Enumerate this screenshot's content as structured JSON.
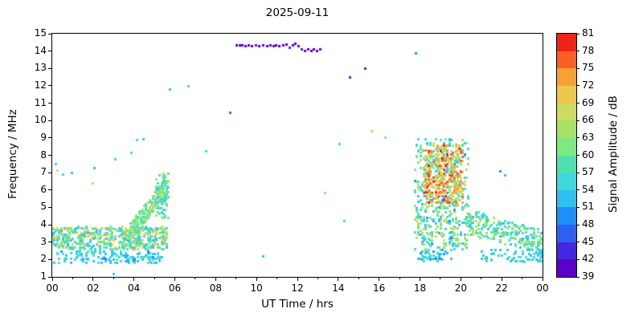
{
  "title": "2025-09-11",
  "colors": {
    "background": "#ffffff",
    "axis": "#000000"
  },
  "chart_data": {
    "type": "scatter",
    "title": "2025-09-11",
    "xlabel": "UT Time / hrs",
    "ylabel": "Frequency / MHz",
    "colorbar_label": "Signal Amplitude / dB",
    "xlim": [
      0,
      24
    ],
    "ylim": [
      1,
      15
    ],
    "clim": [
      39,
      81
    ],
    "grid": false,
    "legend": "none",
    "marker_size": 3,
    "seed": 1234,
    "xticks": {
      "values": [
        0,
        2,
        4,
        6,
        8,
        10,
        12,
        14,
        16,
        18,
        20,
        22,
        24
      ],
      "labels": [
        "00",
        "02",
        "04",
        "06",
        "08",
        "10",
        "12",
        "14",
        "16",
        "18",
        "20",
        "22",
        "00"
      ]
    },
    "xminor": [
      1,
      3,
      5,
      7,
      9,
      11,
      13,
      15,
      17,
      19,
      21,
      23
    ],
    "yticks": [
      1,
      2,
      3,
      4,
      5,
      6,
      7,
      8,
      9,
      10,
      11,
      12,
      13,
      14,
      15
    ],
    "colorbar_ticks": [
      39,
      42,
      45,
      48,
      51,
      54,
      57,
      60,
      63,
      66,
      69,
      72,
      75,
      78,
      81
    ],
    "colormap": [
      "#5a00c8",
      "#4428e0",
      "#3060f0",
      "#2090f8",
      "#30c0f0",
      "#40d8d8",
      "#50e0b0",
      "#80e880",
      "#a8e068",
      "#ccdc60",
      "#ecc84c",
      "#f8a038",
      "#f86028",
      "#ee2418"
    ],
    "points": [
      [
        0.15,
        7.5,
        54
      ],
      [
        0.22,
        7.15,
        68
      ],
      [
        0.5,
        6.9,
        54
      ],
      [
        0.95,
        7.0,
        51
      ],
      [
        1.95,
        6.4,
        69
      ],
      [
        2.05,
        7.3,
        51
      ],
      [
        3.05,
        7.8,
        54
      ],
      [
        3.0,
        1.2,
        51
      ],
      [
        3.85,
        8.15,
        54
      ],
      [
        4.15,
        8.9,
        54
      ],
      [
        4.45,
        8.95,
        51
      ],
      [
        5.75,
        11.8,
        51
      ],
      [
        6.65,
        12.0,
        54
      ],
      [
        7.5,
        8.25,
        54
      ],
      [
        8.7,
        10.45,
        46
      ],
      [
        10.3,
        2.2,
        51
      ],
      [
        9.0,
        14.35,
        40
      ],
      [
        9.15,
        14.35,
        39
      ],
      [
        9.3,
        14.35,
        41
      ],
      [
        9.45,
        14.3,
        39
      ],
      [
        9.6,
        14.35,
        40
      ],
      [
        9.75,
        14.3,
        39
      ],
      [
        9.95,
        14.35,
        42
      ],
      [
        10.1,
        14.3,
        39
      ],
      [
        10.3,
        14.35,
        40
      ],
      [
        10.5,
        14.3,
        39
      ],
      [
        10.65,
        14.35,
        41
      ],
      [
        10.8,
        14.3,
        39
      ],
      [
        10.95,
        14.35,
        39
      ],
      [
        11.1,
        14.3,
        40
      ],
      [
        11.3,
        14.35,
        39
      ],
      [
        11.45,
        14.4,
        39
      ],
      [
        11.6,
        14.2,
        42
      ],
      [
        11.75,
        14.35,
        39
      ],
      [
        11.9,
        14.45,
        39
      ],
      [
        12.05,
        14.3,
        39
      ],
      [
        12.2,
        14.1,
        44
      ],
      [
        12.35,
        14.05,
        39
      ],
      [
        12.5,
        14.1,
        40
      ],
      [
        12.65,
        14.05,
        39
      ],
      [
        12.8,
        14.1,
        39
      ],
      [
        12.95,
        14.05,
        41
      ],
      [
        13.1,
        14.1,
        39
      ],
      [
        13.35,
        5.85,
        60
      ],
      [
        14.05,
        8.65,
        54
      ],
      [
        14.3,
        4.25,
        57
      ],
      [
        14.55,
        12.5,
        44
      ],
      [
        15.3,
        13.0,
        42
      ],
      [
        15.6,
        9.4,
        69
      ],
      [
        16.3,
        9.05,
        60
      ],
      [
        17.8,
        13.9,
        48
      ],
      [
        21.9,
        7.1,
        48
      ],
      [
        22.15,
        6.85,
        51
      ],
      [
        21.0,
        2.05,
        51
      ],
      [
        21.5,
        1.95,
        54
      ],
      [
        22.6,
        2.1,
        51
      ],
      [
        23.1,
        1.9,
        54
      ]
    ],
    "bands": [
      {
        "name": "morning-low-main",
        "t": [
          0.0,
          5.6
        ],
        "f": [
          2.6,
          3.9
        ],
        "n": 560,
        "amps": [
          [
            51,
            2
          ],
          [
            54,
            3
          ],
          [
            57,
            3
          ],
          [
            60,
            3
          ],
          [
            63,
            2
          ],
          [
            66,
            1.5
          ],
          [
            69,
            1
          ],
          [
            72,
            0.5
          ]
        ]
      },
      {
        "name": "morning-low-floor",
        "t": [
          0.0,
          5.3
        ],
        "f": [
          1.8,
          2.5
        ],
        "n": 150,
        "amps": [
          [
            48,
            1
          ],
          [
            51,
            3
          ],
          [
            54,
            3
          ],
          [
            57,
            1
          ]
        ]
      },
      {
        "name": "morning-rise",
        "t": [
          3.8,
          5.65
        ],
        "fc": [
          3.6,
          6.3
        ],
        "fw": 0.55,
        "n": 220,
        "amps": [
          [
            54,
            2
          ],
          [
            57,
            3
          ],
          [
            60,
            3
          ],
          [
            63,
            2
          ],
          [
            66,
            1
          ],
          [
            69,
            0.5
          ]
        ]
      },
      {
        "name": "morning-rise-top",
        "t": [
          5.05,
          5.65
        ],
        "f": [
          4.3,
          7.0
        ],
        "n": 90,
        "amps": [
          [
            51,
            1
          ],
          [
            54,
            2
          ],
          [
            57,
            3
          ],
          [
            60,
            2
          ],
          [
            63,
            1
          ]
        ]
      },
      {
        "name": "evening-main",
        "t": [
          17.75,
          20.35
        ],
        "f": [
          2.6,
          9.0
        ],
        "n": 550,
        "amps": [
          [
            48,
            1
          ],
          [
            51,
            2
          ],
          [
            54,
            3
          ],
          [
            57,
            3
          ],
          [
            60,
            3
          ],
          [
            63,
            2
          ],
          [
            66,
            1
          ]
        ]
      },
      {
        "name": "evening-warm",
        "t": [
          18.2,
          20.1
        ],
        "f": [
          5.2,
          8.6
        ],
        "n": 300,
        "amps": [
          [
            63,
            1
          ],
          [
            66,
            2
          ],
          [
            69,
            3
          ],
          [
            72,
            3
          ],
          [
            75,
            2
          ],
          [
            78,
            1
          ]
        ]
      },
      {
        "name": "evening-low-tail",
        "t": [
          17.8,
          19.5
        ],
        "f": [
          1.9,
          2.6
        ],
        "n": 50,
        "amps": [
          [
            48,
            1
          ],
          [
            51,
            2
          ],
          [
            54,
            2
          ]
        ]
      },
      {
        "name": "night-fall",
        "t": [
          20.3,
          24.0
        ],
        "fc": [
          4.2,
          3.0
        ],
        "fw": 0.7,
        "n": 260,
        "amps": [
          [
            51,
            2
          ],
          [
            54,
            3
          ],
          [
            57,
            3
          ],
          [
            60,
            2
          ],
          [
            63,
            1.5
          ],
          [
            66,
            0.5
          ]
        ]
      },
      {
        "name": "night-floor",
        "t": [
          21.0,
          24.0
        ],
        "f": [
          1.9,
          2.6
        ],
        "n": 60,
        "amps": [
          [
            51,
            2
          ],
          [
            54,
            2
          ],
          [
            57,
            1
          ]
        ]
      }
    ]
  }
}
